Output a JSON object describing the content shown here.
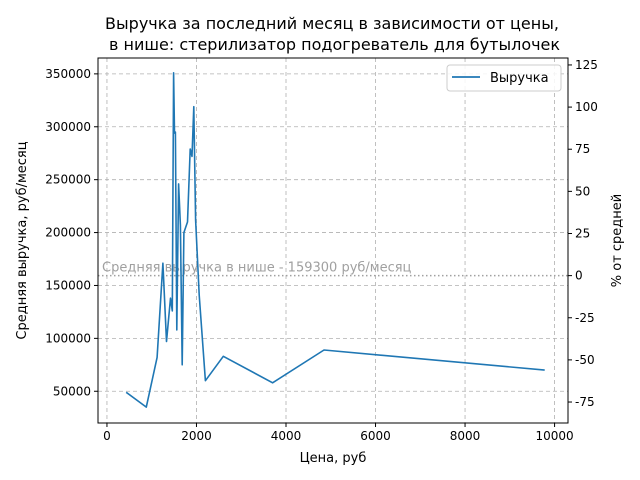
{
  "chart_data": {
    "type": "line",
    "title": [
      "Выручка за последний месяц в зависимости от цены,",
      " в нише: стерилизатор подогреватель для бутылочек"
    ],
    "xlabel": "Цена, руб",
    "ylabel": "Средняя выручка, руб/месяц",
    "y2label": "% от средней",
    "xlim": [
      -200,
      10300
    ],
    "ylim": [
      20000,
      365000
    ],
    "xticks": [
      0,
      2000,
      4000,
      6000,
      8000,
      10000
    ],
    "yticks": [
      50000,
      100000,
      150000,
      200000,
      250000,
      300000,
      350000
    ],
    "y2ticks": [
      -75,
      -50,
      -25,
      0,
      25,
      50,
      75,
      100,
      125
    ],
    "grid": true,
    "legend_position": "top-right",
    "series": [
      {
        "name": "Выручка",
        "color": "#1f77b4",
        "x": [
          430,
          880,
          1120,
          1250,
          1330,
          1420,
          1460,
          1490,
          1510,
          1530,
          1560,
          1600,
          1640,
          1680,
          1720,
          1760,
          1800,
          1860,
          1900,
          1940,
          1980,
          2060,
          2200,
          2600,
          3700,
          4850,
          9780
        ],
        "y": [
          49000,
          35000,
          82000,
          171000,
          97000,
          138000,
          126000,
          351000,
          294000,
          295000,
          108000,
          246000,
          207000,
          75000,
          200000,
          205000,
          210000,
          279000,
          272000,
          319000,
          212000,
          141000,
          60000,
          83000,
          58000,
          89000,
          70000
        ]
      }
    ],
    "reference_line": {
      "value": 159300,
      "label": "Средняя выручка в нише - 159300 руб/месяц",
      "color": "#a0a0a0"
    }
  }
}
